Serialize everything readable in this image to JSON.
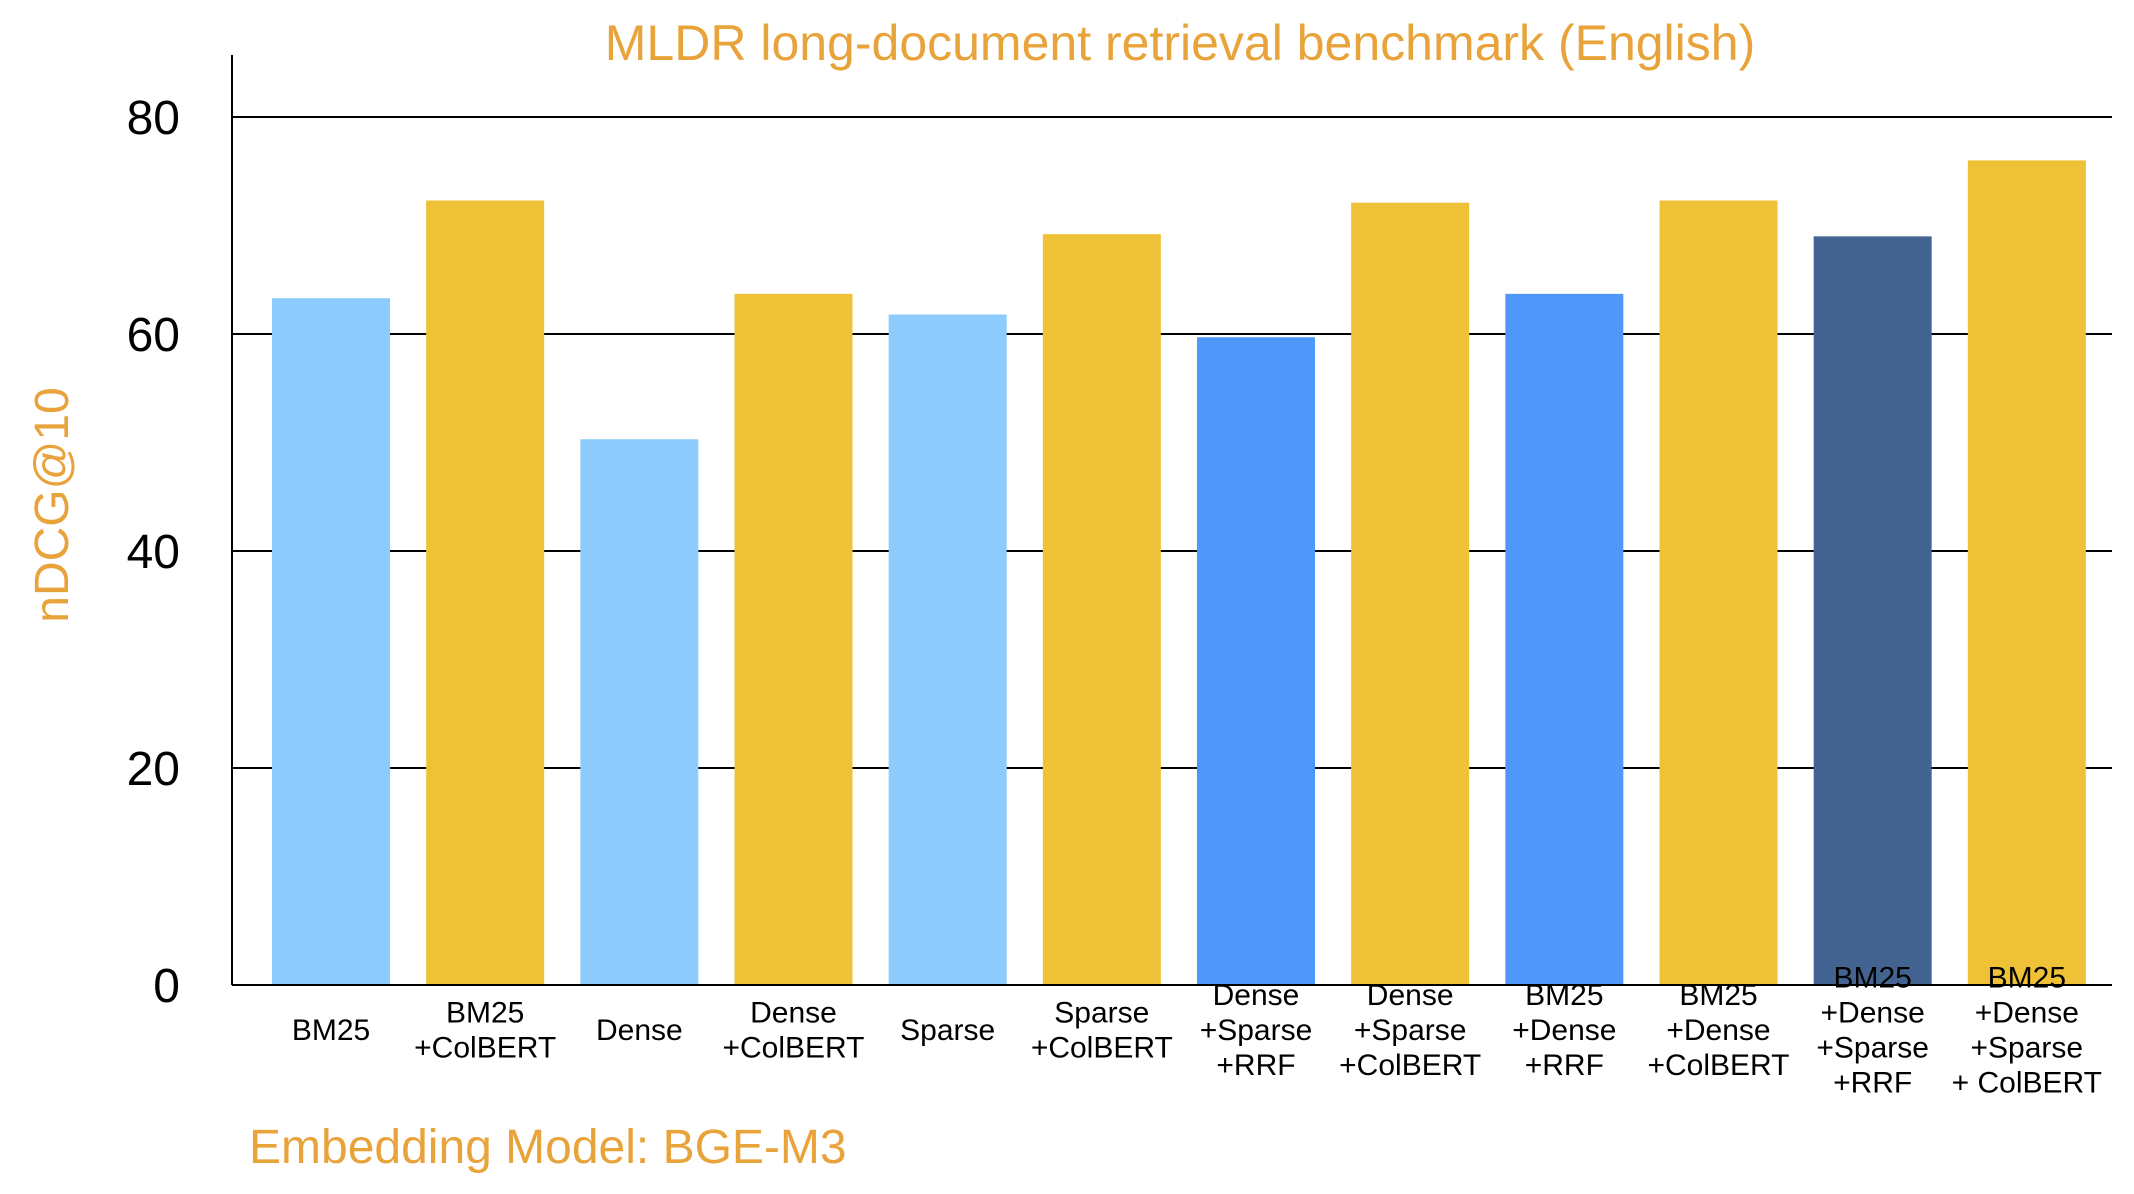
{
  "chart_data": {
    "type": "bar",
    "title": "MLDR long-document retrieval benchmark (English)",
    "xlabel": "",
    "ylabel": "nDCG@10",
    "ylim": [
      0,
      80
    ],
    "yticks": [
      0,
      20,
      40,
      60,
      80
    ],
    "grid": true,
    "footnote": "Embedding Model: BGE-M3",
    "categories": [
      [
        "BM25"
      ],
      [
        "BM25",
        "+ColBERT"
      ],
      [
        "Dense"
      ],
      [
        "Dense",
        "+ColBERT"
      ],
      [
        "Sparse"
      ],
      [
        "Sparse",
        "+ColBERT"
      ],
      [
        "Dense",
        "+Sparse",
        "+RRF"
      ],
      [
        "Dense",
        "+Sparse",
        "+ColBERT"
      ],
      [
        "BM25",
        "+Dense",
        "+RRF"
      ],
      [
        "BM25",
        "+Dense",
        "+ColBERT"
      ],
      [
        "BM25",
        "+Dense",
        "+Sparse",
        "+RRF"
      ],
      [
        "BM25",
        "+Dense",
        "+Sparse",
        "+ ColBERT"
      ]
    ],
    "values": [
      63.3,
      72.3,
      50.3,
      63.7,
      61.8,
      69.2,
      59.7,
      72.1,
      63.7,
      72.3,
      69.0,
      76.0
    ],
    "colors": [
      "#8ccbfc",
      "#efc136",
      "#8ccbfc",
      "#efc136",
      "#8ccbfc",
      "#efc136",
      "#4f97f8",
      "#efc136",
      "#4f97f8",
      "#efc136",
      "#436491",
      "#efc136"
    ]
  }
}
